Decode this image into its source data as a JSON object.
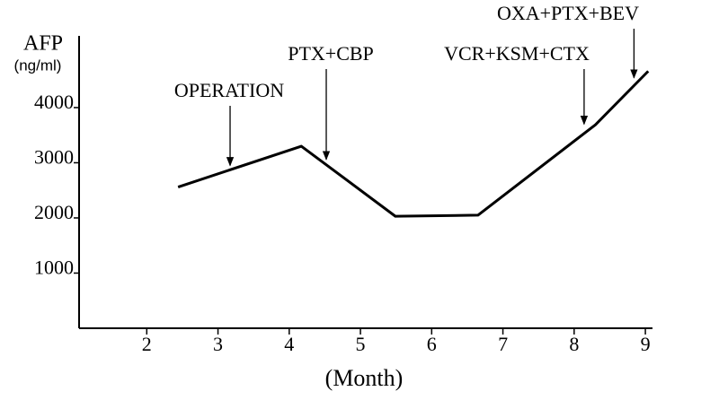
{
  "chart_data": {
    "type": "line",
    "y_label": "AFP",
    "y_unit": "(ng/ml)",
    "x_label": "(Month)",
    "x": [
      2.44,
      4.17,
      5.49,
      6.65,
      8.3,
      9.04
    ],
    "series": [
      {
        "color": "#000000",
        "values": [
          2560,
          3300,
          2030,
          2050,
          3690,
          4660
        ]
      }
    ],
    "xlim": [
      1.05,
      9.1
    ],
    "xticks": [
      2,
      3,
      4,
      5,
      6,
      7,
      8,
      9
    ],
    "ylim": [
      0,
      5300
    ],
    "yticks": [
      1000,
      2000,
      3000,
      4000
    ],
    "annotations": [
      {
        "text": "OPERATION",
        "x": 3.17,
        "y": 2950
      },
      {
        "text": "PTX+CBP",
        "x": 4.52,
        "y": 3060
      },
      {
        "text": "VCR+KSM+CTX",
        "x": 8.14,
        "y": 3700
      },
      {
        "text": "OXA+PTX+BEV",
        "x": 8.84,
        "y": 4540
      }
    ]
  }
}
